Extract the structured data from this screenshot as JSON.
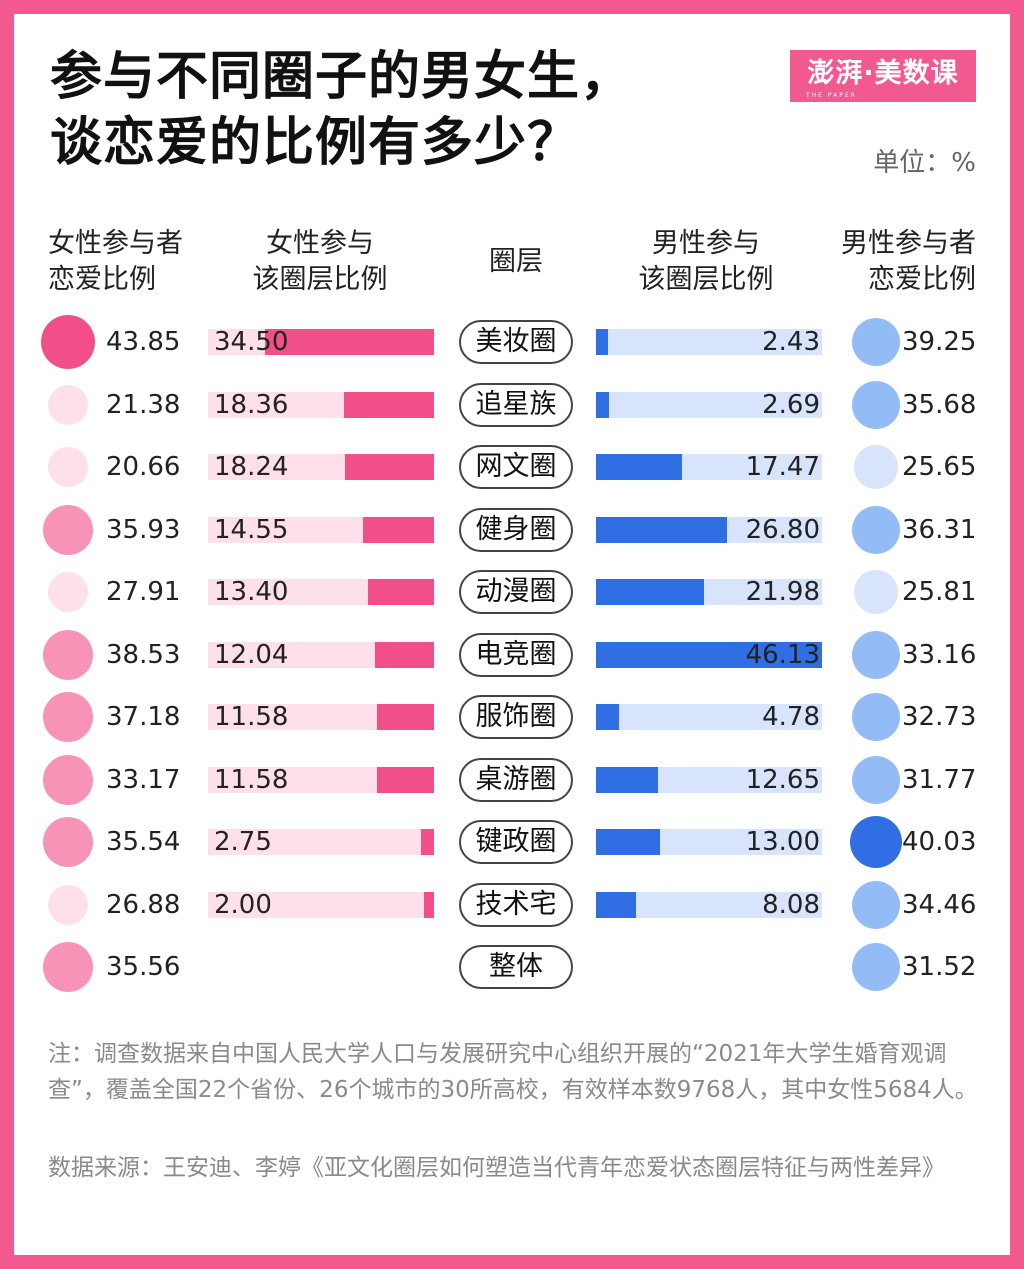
{
  "title_line1": "参与不同圈子的男女生，",
  "title_line2": "谈恋爱的比例有多少？",
  "logo_text": "澎湃·美数课",
  "logo_sub": "THE PAPER",
  "unit": "单位：%",
  "headers": {
    "female_love": [
      "女性参与者",
      "恋爱比例"
    ],
    "female_part": [
      "女性参与",
      "该圈层比例"
    ],
    "circle": "圈层",
    "male_part": [
      "男性参与",
      "该圈层比例"
    ],
    "male_love": [
      "男性参与者",
      "恋爱比例"
    ]
  },
  "chart_data": {
    "type": "table",
    "columns": [
      "女性参与者恋爱比例",
      "女性参与该圈层比例",
      "圈层",
      "男性参与该圈层比例",
      "男性参与者恋爱比例"
    ],
    "rows": [
      {
        "circle": "美妆圈",
        "female_love": "43.85",
        "female_part": "34.50",
        "male_part": "2.43",
        "male_love": "39.25"
      },
      {
        "circle": "追星族",
        "female_love": "21.38",
        "female_part": "18.36",
        "male_part": "2.69",
        "male_love": "35.68"
      },
      {
        "circle": "网文圈",
        "female_love": "20.66",
        "female_part": "18.24",
        "male_part": "17.47",
        "male_love": "25.65"
      },
      {
        "circle": "健身圈",
        "female_love": "35.93",
        "female_part": "14.55",
        "male_part": "26.80",
        "male_love": "36.31"
      },
      {
        "circle": "动漫圈",
        "female_love": "27.91",
        "female_part": "13.40",
        "male_part": "21.98",
        "male_love": "25.81"
      },
      {
        "circle": "电竞圈",
        "female_love": "38.53",
        "female_part": "12.04",
        "male_part": "46.13",
        "male_love": "33.16"
      },
      {
        "circle": "服饰圈",
        "female_love": "37.18",
        "female_part": "11.58",
        "male_part": "4.78",
        "male_love": "32.73"
      },
      {
        "circle": "桌游圈",
        "female_love": "33.17",
        "female_part": "11.58",
        "male_part": "12.65",
        "male_love": "31.77"
      },
      {
        "circle": "键政圈",
        "female_love": "35.54",
        "female_part": "2.75",
        "male_part": "13.00",
        "male_love": "40.03"
      },
      {
        "circle": "技术宅",
        "female_love": "26.88",
        "female_part": "2.00",
        "male_part": "8.08",
        "male_love": "34.46"
      },
      {
        "circle": "整体",
        "female_love": "35.56",
        "female_part": null,
        "male_part": null,
        "male_love": "31.52"
      }
    ],
    "part_bar_max": 46.13,
    "colors": {
      "pink_dark": "#f24f8a",
      "pink_mid": "#f893b8",
      "pink_light": "#fde0ea",
      "blue_dark": "#2f6fe3",
      "blue_mid": "#93bcf7",
      "blue_light": "#d8e4fb"
    }
  },
  "note": "注：调查数据来自中国人民大学人口与发展研究中心组织开展的“2021年大学生婚育观调查”，覆盖全国22个省份、26个城市的30所高校，有效样本数9768人，其中女性5684人。",
  "source": "数据来源：王安迪、李婷《亚文化圈层如何塑造当代青年恋爱状态圈层特征与两性差异》"
}
